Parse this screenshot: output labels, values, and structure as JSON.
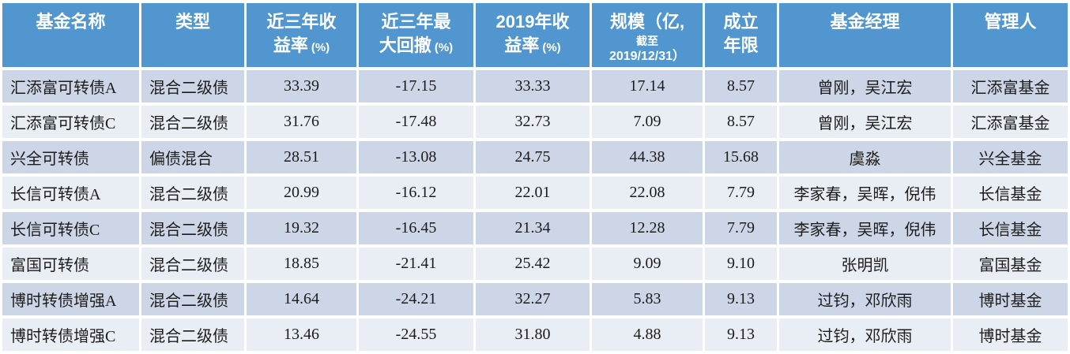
{
  "colors": {
    "header_bg": "#5196CE",
    "header_text": "#FFFFFF",
    "band_dark": "#CDD6E6",
    "band_light": "#E9EDF4",
    "body_text": "#1C1C1C",
    "border": "#FFFFFF"
  },
  "headers": {
    "name": "基金名称",
    "type": "类型",
    "ret3y_l1": "近三年收",
    "ret3y_l2": "益率",
    "ret3y_unit": "(%)",
    "mdd3y_l1": "近三年最",
    "mdd3y_l2": "大回撤",
    "mdd3y_unit": "(%)",
    "ret2019_l1": "2019年收",
    "ret2019_l2": "益率",
    "ret2019_unit": "(%)",
    "scale_l1": "规模（亿,",
    "scale_l2": "截至",
    "scale_l3": "2019/12/31）",
    "age_l1": "成立",
    "age_l2": "年限",
    "manager": "基金经理",
    "company": "管理人"
  },
  "chart_data": {
    "type": "table",
    "title": "",
    "columns": [
      "基金名称",
      "类型",
      "近三年收益率(%)",
      "近三年最大回撤(%)",
      "2019年收益率(%)",
      "规模（亿,截至2019/12/31）",
      "成立年限",
      "基金经理",
      "管理人"
    ],
    "rows": [
      [
        "汇添富可转债A",
        "混合二级债",
        "33.39",
        "-17.15",
        "33.33",
        "17.14",
        "8.57",
        "曾刚，吴江宏",
        "汇添富基金"
      ],
      [
        "汇添富可转债C",
        "混合二级债",
        "31.76",
        "-17.48",
        "32.73",
        "7.09",
        "8.57",
        "曾刚，吴江宏",
        "汇添富基金"
      ],
      [
        "兴全可转债",
        "偏债混合",
        "28.51",
        "-13.08",
        "24.75",
        "44.38",
        "15.68",
        "虞淼",
        "兴全基金"
      ],
      [
        "长信可转债A",
        "混合二级债",
        "20.99",
        "-16.12",
        "22.01",
        "22.08",
        "7.79",
        "李家春，吴晖，倪伟",
        "长信基金"
      ],
      [
        "长信可转债C",
        "混合二级债",
        "19.32",
        "-16.45",
        "21.34",
        "12.28",
        "7.79",
        "李家春，吴晖，倪伟",
        "长信基金"
      ],
      [
        "富国可转债",
        "混合二级债",
        "18.85",
        "-21.41",
        "25.42",
        "9.09",
        "9.10",
        "张明凯",
        "富国基金"
      ],
      [
        "博时转债增强A",
        "混合二级债",
        "14.64",
        "-24.21",
        "32.27",
        "5.83",
        "9.13",
        "过钧，邓欣雨",
        "博时基金"
      ],
      [
        "博时转债增强C",
        "混合二级债",
        "13.46",
        "-24.55",
        "31.80",
        "4.88",
        "9.13",
        "过钧，邓欣雨",
        "博时基金"
      ]
    ]
  }
}
